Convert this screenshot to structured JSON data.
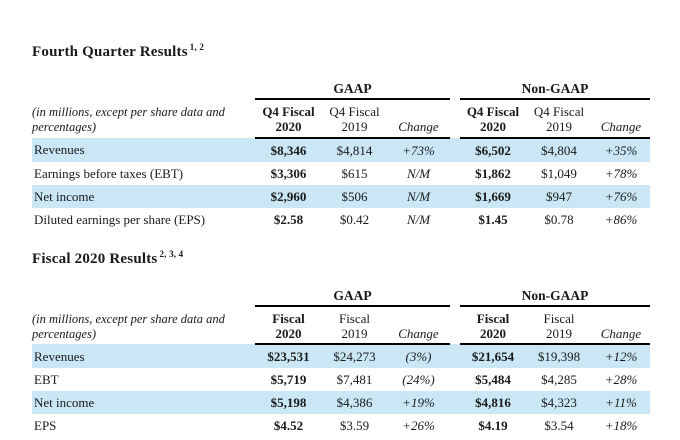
{
  "colors": {
    "stripe": "#cbe7f5",
    "text": "#1a1a1a",
    "rule": "#000000"
  },
  "tables": [
    {
      "title": "Fourth Quarter Results",
      "superscript": "1, 2",
      "note": "(in millions, except per share data and percentages)",
      "group_headers": [
        "GAAP",
        "Non-GAAP"
      ],
      "col_headers": [
        {
          "line1": "Q4 Fiscal",
          "line2": "2020"
        },
        {
          "line1": "Q4 Fiscal",
          "line2": "2019"
        },
        {
          "line1": "Change"
        },
        {
          "line1": "Q4 Fiscal",
          "line2": "2020"
        },
        {
          "line1": "Q4 Fiscal",
          "line2": "2019"
        },
        {
          "line1": "Change"
        }
      ],
      "rows": [
        {
          "cells": [
            "Revenues",
            "$8,346",
            "$4,814",
            "+73%",
            "$6,502",
            "$4,804",
            "+35%"
          ]
        },
        {
          "cells": [
            "Earnings before taxes (EBT)",
            "$3,306",
            "$615",
            "N/M",
            "$1,862",
            "$1,049",
            "+78%"
          ]
        },
        {
          "cells": [
            "Net income",
            "$2,960",
            "$506",
            "N/M",
            "$1,669",
            "$947",
            "+76%"
          ]
        },
        {
          "cells": [
            "Diluted earnings per share (EPS)",
            "$2.58",
            "$0.42",
            "N/M",
            "$1.45",
            "$0.78",
            "+86%"
          ]
        }
      ]
    },
    {
      "title": "Fiscal 2020 Results",
      "superscript": "2, 3, 4",
      "note": "(in millions, except per share data and percentages)",
      "group_headers": [
        "GAAP",
        "Non-GAAP"
      ],
      "col_headers": [
        {
          "line1": "Fiscal",
          "line2": "2020"
        },
        {
          "line1": "Fiscal",
          "line2": "2019"
        },
        {
          "line1": "Change"
        },
        {
          "line1": "Fiscal",
          "line2": "2020"
        },
        {
          "line1": "Fiscal",
          "line2": "2019"
        },
        {
          "line1": "Change"
        }
      ],
      "rows": [
        {
          "cells": [
            "Revenues",
            "$23,531",
            "$24,273",
            "(3%)",
            "$21,654",
            "$19,398",
            "+12%"
          ]
        },
        {
          "cells": [
            "EBT",
            "$5,719",
            "$7,481",
            "(24%)",
            "$5,484",
            "$4,285",
            "+28%"
          ]
        },
        {
          "cells": [
            "Net income",
            "$5,198",
            "$4,386",
            "+19%",
            "$4,816",
            "$4,323",
            "+11%"
          ]
        },
        {
          "cells": [
            "EPS",
            "$4.52",
            "$3.59",
            "+26%",
            "$4.19",
            "$3.54",
            "+18%"
          ]
        }
      ]
    }
  ]
}
